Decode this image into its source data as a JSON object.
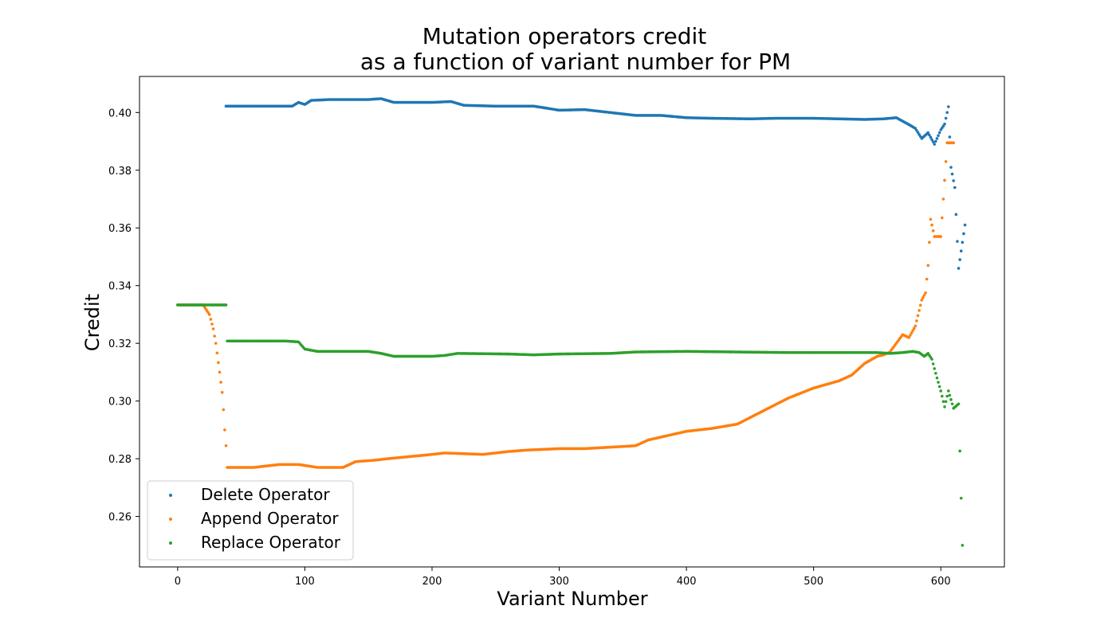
{
  "chart_data": {
    "type": "scatter",
    "title_line1": "Mutation operators credit",
    "title_line2": "as a function of variant number for PM",
    "xlabel": "Variant Number",
    "ylabel": "Credit",
    "xlim": [
      -30,
      650
    ],
    "ylim": [
      0.2425,
      0.4125
    ],
    "xticks": [
      0,
      100,
      200,
      300,
      400,
      500,
      600
    ],
    "yticks": [
      0.26,
      0.28,
      0.3,
      0.32,
      0.34,
      0.36,
      0.38,
      0.4
    ],
    "legend_position": "lower-left",
    "grid": false,
    "series": [
      {
        "name": "Delete Operator",
        "color": "#1f77b4",
        "points": [
          [
            38,
            0.4022
          ],
          [
            90,
            0.4022
          ],
          [
            95,
            0.4035
          ],
          [
            100,
            0.4028
          ],
          [
            105,
            0.4042
          ],
          [
            120,
            0.4045
          ],
          [
            150,
            0.4045
          ],
          [
            160,
            0.4048
          ],
          [
            170,
            0.4035
          ],
          [
            200,
            0.4035
          ],
          [
            215,
            0.4038
          ],
          [
            225,
            0.4025
          ],
          [
            250,
            0.4022
          ],
          [
            280,
            0.4022
          ],
          [
            300,
            0.4008
          ],
          [
            320,
            0.401
          ],
          [
            340,
            0.4
          ],
          [
            360,
            0.399
          ],
          [
            380,
            0.399
          ],
          [
            400,
            0.3982
          ],
          [
            420,
            0.398
          ],
          [
            450,
            0.3978
          ],
          [
            470,
            0.398
          ],
          [
            500,
            0.398
          ],
          [
            520,
            0.3978
          ],
          [
            540,
            0.3976
          ],
          [
            555,
            0.3978
          ],
          [
            565,
            0.3982
          ],
          [
            570,
            0.397
          ],
          [
            575,
            0.3958
          ],
          [
            580,
            0.3945
          ],
          [
            585,
            0.391
          ],
          [
            590,
            0.393
          ],
          [
            595,
            0.389
          ],
          [
            600,
            0.394
          ],
          [
            603,
            0.396
          ],
          [
            606,
            0.402
          ],
          [
            608,
            0.381
          ],
          [
            611,
            0.374
          ],
          [
            614,
            0.346
          ],
          [
            619,
            0.361
          ]
        ]
      },
      {
        "name": "Append Operator",
        "color": "#ff7f0e",
        "points": [
          [
            0,
            0.3333
          ],
          [
            20,
            0.3333
          ],
          [
            25,
            0.33
          ],
          [
            28,
            0.325
          ],
          [
            30,
            0.32
          ],
          [
            33,
            0.31
          ],
          [
            35,
            0.303
          ],
          [
            36,
            0.297
          ],
          [
            37,
            0.29
          ],
          [
            38,
            0.2845
          ],
          [
            39,
            0.277
          ],
          [
            60,
            0.277
          ],
          [
            80,
            0.278
          ],
          [
            95,
            0.278
          ],
          [
            110,
            0.277
          ],
          [
            130,
            0.277
          ],
          [
            140,
            0.279
          ],
          [
            155,
            0.2795
          ],
          [
            165,
            0.28
          ],
          [
            200,
            0.2815
          ],
          [
            210,
            0.282
          ],
          [
            240,
            0.2815
          ],
          [
            260,
            0.2825
          ],
          [
            275,
            0.283
          ],
          [
            300,
            0.2835
          ],
          [
            320,
            0.2835
          ],
          [
            340,
            0.284
          ],
          [
            360,
            0.2845
          ],
          [
            370,
            0.2865
          ],
          [
            380,
            0.2875
          ],
          [
            400,
            0.2895
          ],
          [
            420,
            0.2905
          ],
          [
            440,
            0.292
          ],
          [
            460,
            0.2965
          ],
          [
            480,
            0.301
          ],
          [
            500,
            0.3045
          ],
          [
            520,
            0.307
          ],
          [
            530,
            0.309
          ],
          [
            540,
            0.313
          ],
          [
            550,
            0.3155
          ],
          [
            555,
            0.316
          ],
          [
            560,
            0.317
          ],
          [
            565,
            0.32
          ],
          [
            570,
            0.323
          ],
          [
            575,
            0.322
          ],
          [
            580,
            0.326
          ],
          [
            585,
            0.335
          ],
          [
            588,
            0.3375
          ],
          [
            590,
            0.347
          ],
          [
            592,
            0.363
          ],
          [
            595,
            0.357
          ],
          [
            600,
            0.357
          ],
          [
            605,
            0.3895
          ],
          [
            610,
            0.3895
          ]
        ]
      },
      {
        "name": "Replace Operator",
        "color": "#2ca02c",
        "points": [
          [
            0,
            0.3333
          ],
          [
            38,
            0.3333
          ],
          [
            39,
            0.3208
          ],
          [
            85,
            0.3208
          ],
          [
            95,
            0.3205
          ],
          [
            100,
            0.318
          ],
          [
            110,
            0.3172
          ],
          [
            150,
            0.3172
          ],
          [
            160,
            0.3165
          ],
          [
            170,
            0.3155
          ],
          [
            200,
            0.3155
          ],
          [
            210,
            0.3158
          ],
          [
            220,
            0.3165
          ],
          [
            260,
            0.3163
          ],
          [
            280,
            0.316
          ],
          [
            300,
            0.3163
          ],
          [
            340,
            0.3165
          ],
          [
            360,
            0.317
          ],
          [
            400,
            0.3172
          ],
          [
            440,
            0.317
          ],
          [
            480,
            0.3168
          ],
          [
            520,
            0.3168
          ],
          [
            550,
            0.3168
          ],
          [
            560,
            0.3165
          ],
          [
            570,
            0.3168
          ],
          [
            578,
            0.3172
          ],
          [
            583,
            0.3168
          ],
          [
            587,
            0.3155
          ],
          [
            590,
            0.3165
          ],
          [
            593,
            0.3145
          ],
          [
            597,
            0.308
          ],
          [
            600,
            0.3035
          ],
          [
            603,
            0.298
          ],
          [
            606,
            0.3035
          ],
          [
            610,
            0.2975
          ],
          [
            614,
            0.299
          ],
          [
            617,
            0.25
          ]
        ]
      }
    ]
  }
}
